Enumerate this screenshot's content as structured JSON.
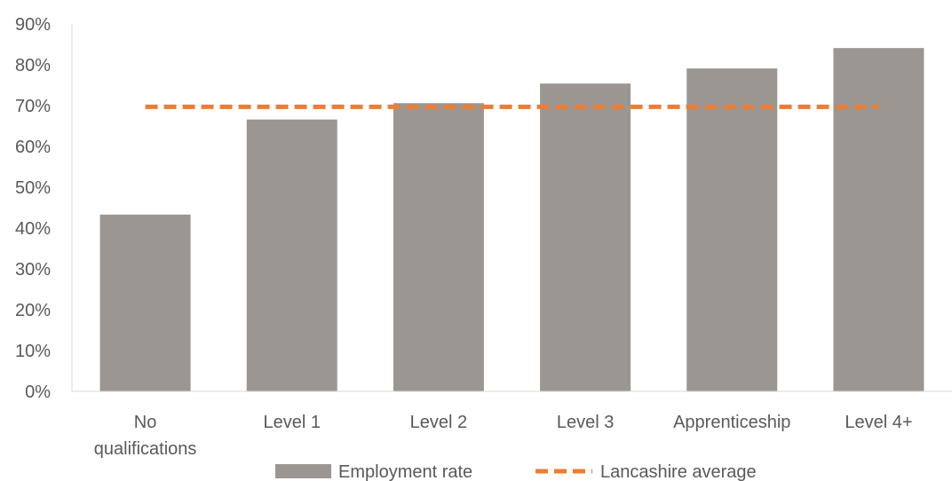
{
  "chart_data": {
    "type": "bar",
    "categories": [
      [
        "No",
        "qualifications"
      ],
      [
        "Level 1"
      ],
      [
        "Level 2"
      ],
      [
        "Level 3"
      ],
      [
        "Apprenticeship"
      ],
      [
        "Level 4+"
      ]
    ],
    "series": [
      {
        "name": "Employment rate",
        "values": [
          43.3,
          66.6,
          70.6,
          75.4,
          79.1,
          84.1
        ],
        "color": "#9b9692"
      }
    ],
    "reference_line": {
      "name": "Lancashire average",
      "value": 69.7,
      "color": "#ed7d31",
      "style": "dashed"
    },
    "ylim": [
      0,
      90
    ],
    "yticks": [
      0,
      10,
      20,
      30,
      40,
      50,
      60,
      70,
      80,
      90
    ],
    "ytick_format": "%",
    "grid": false,
    "legend": "bottom-center",
    "title": "",
    "xlabel": "",
    "ylabel": ""
  }
}
